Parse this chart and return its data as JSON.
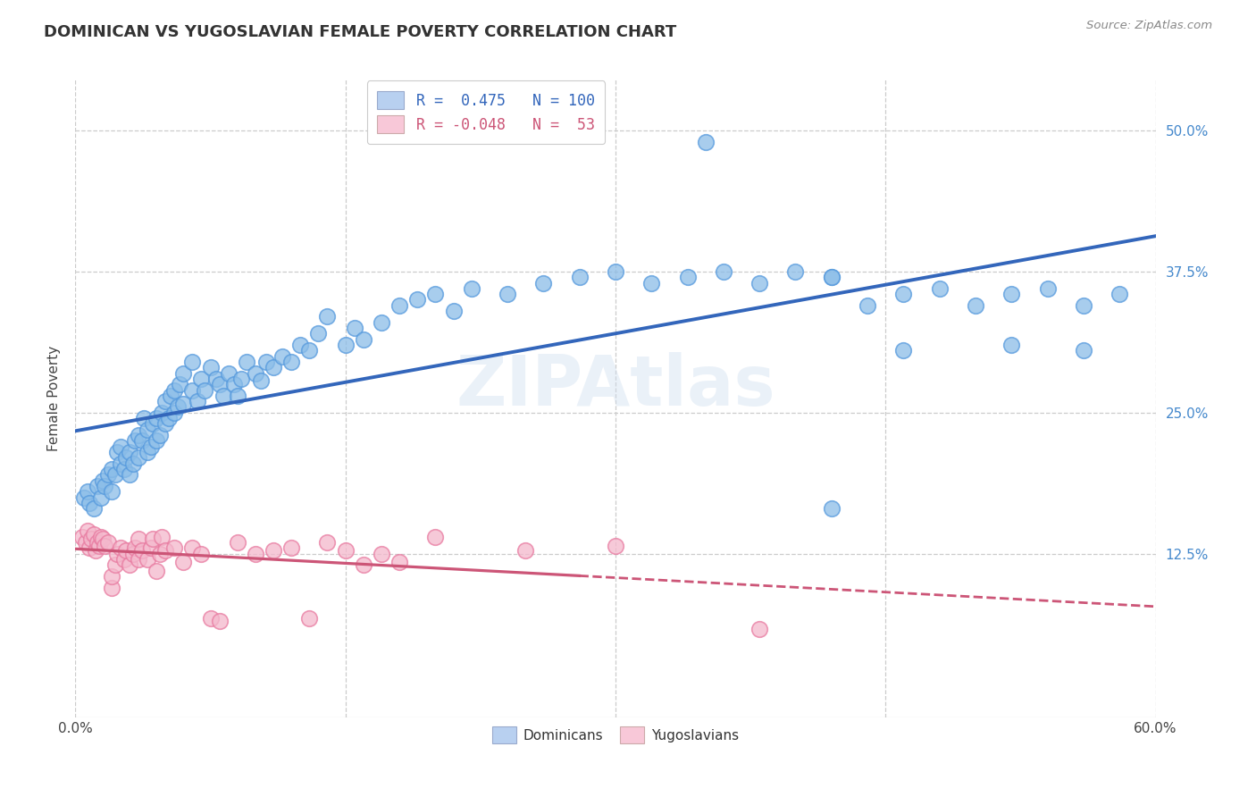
{
  "title": "DOMINICAN VS YUGOSLAVIAN FEMALE POVERTY CORRELATION CHART",
  "source": "Source: ZipAtlas.com",
  "ylabel": "Female Poverty",
  "yticks": [
    "12.5%",
    "25.0%",
    "37.5%",
    "50.0%"
  ],
  "ytick_vals": [
    0.125,
    0.25,
    0.375,
    0.5
  ],
  "xlim": [
    0.0,
    0.6
  ],
  "ylim": [
    -0.02,
    0.545
  ],
  "dominican_color": "#8bbde8",
  "dominican_edge": "#5599dd",
  "yugoslavian_color": "#f4b8cc",
  "yugoslavian_edge": "#e87aa0",
  "dominican_line_color": "#3366bb",
  "yugoslavian_line_color": "#cc5577",
  "legend_blue_label": "R =  0.475   N = 100",
  "legend_pink_label": "R = -0.048   N =  53",
  "legend_blue_face": "#b8d0f0",
  "legend_pink_face": "#f8c8d8",
  "watermark": "ZIPAtlas",
  "background_color": "#ffffff",
  "grid_color": "#cccccc",
  "dom_x": [
    0.005,
    0.007,
    0.008,
    0.01,
    0.012,
    0.014,
    0.015,
    0.016,
    0.018,
    0.02,
    0.02,
    0.022,
    0.023,
    0.025,
    0.025,
    0.027,
    0.028,
    0.03,
    0.03,
    0.032,
    0.033,
    0.035,
    0.035,
    0.037,
    0.038,
    0.04,
    0.04,
    0.042,
    0.043,
    0.045,
    0.045,
    0.047,
    0.048,
    0.05,
    0.05,
    0.052,
    0.053,
    0.055,
    0.055,
    0.057,
    0.058,
    0.06,
    0.06,
    0.065,
    0.065,
    0.068,
    0.07,
    0.072,
    0.075,
    0.078,
    0.08,
    0.082,
    0.085,
    0.088,
    0.09,
    0.092,
    0.095,
    0.1,
    0.103,
    0.106,
    0.11,
    0.115,
    0.12,
    0.125,
    0.13,
    0.135,
    0.14,
    0.15,
    0.155,
    0.16,
    0.17,
    0.18,
    0.19,
    0.2,
    0.21,
    0.22,
    0.24,
    0.26,
    0.28,
    0.3,
    0.32,
    0.34,
    0.36,
    0.38,
    0.4,
    0.42,
    0.44,
    0.46,
    0.48,
    0.5,
    0.52,
    0.54,
    0.56,
    0.58,
    0.35,
    0.42,
    0.46,
    0.52,
    0.56,
    0.42
  ],
  "dom_y": [
    0.175,
    0.18,
    0.17,
    0.165,
    0.185,
    0.175,
    0.19,
    0.185,
    0.195,
    0.18,
    0.2,
    0.195,
    0.215,
    0.205,
    0.22,
    0.2,
    0.21,
    0.195,
    0.215,
    0.205,
    0.225,
    0.21,
    0.23,
    0.225,
    0.245,
    0.215,
    0.235,
    0.22,
    0.24,
    0.225,
    0.245,
    0.23,
    0.25,
    0.24,
    0.26,
    0.245,
    0.265,
    0.25,
    0.27,
    0.255,
    0.275,
    0.258,
    0.285,
    0.27,
    0.295,
    0.26,
    0.28,
    0.27,
    0.29,
    0.28,
    0.275,
    0.265,
    0.285,
    0.275,
    0.265,
    0.28,
    0.295,
    0.285,
    0.278,
    0.295,
    0.29,
    0.3,
    0.295,
    0.31,
    0.305,
    0.32,
    0.335,
    0.31,
    0.325,
    0.315,
    0.33,
    0.345,
    0.35,
    0.355,
    0.34,
    0.36,
    0.355,
    0.365,
    0.37,
    0.375,
    0.365,
    0.37,
    0.375,
    0.365,
    0.375,
    0.37,
    0.345,
    0.355,
    0.36,
    0.345,
    0.355,
    0.36,
    0.345,
    0.355,
    0.49,
    0.37,
    0.305,
    0.31,
    0.305,
    0.165
  ],
  "yug_x": [
    0.004,
    0.006,
    0.007,
    0.008,
    0.009,
    0.01,
    0.011,
    0.012,
    0.013,
    0.014,
    0.015,
    0.016,
    0.018,
    0.02,
    0.02,
    0.022,
    0.023,
    0.025,
    0.027,
    0.028,
    0.03,
    0.032,
    0.033,
    0.035,
    0.035,
    0.037,
    0.04,
    0.042,
    0.043,
    0.045,
    0.047,
    0.048,
    0.05,
    0.055,
    0.06,
    0.065,
    0.07,
    0.075,
    0.08,
    0.09,
    0.1,
    0.11,
    0.12,
    0.13,
    0.14,
    0.15,
    0.16,
    0.17,
    0.18,
    0.2,
    0.25,
    0.3,
    0.38
  ],
  "yug_y": [
    0.14,
    0.135,
    0.145,
    0.13,
    0.138,
    0.142,
    0.128,
    0.135,
    0.132,
    0.14,
    0.138,
    0.132,
    0.135,
    0.095,
    0.105,
    0.115,
    0.125,
    0.13,
    0.12,
    0.128,
    0.115,
    0.125,
    0.13,
    0.12,
    0.138,
    0.128,
    0.12,
    0.13,
    0.138,
    0.11,
    0.125,
    0.14,
    0.128,
    0.13,
    0.118,
    0.13,
    0.125,
    0.068,
    0.065,
    0.135,
    0.125,
    0.128,
    0.13,
    0.068,
    0.135,
    0.128,
    0.115,
    0.125,
    0.118,
    0.14,
    0.128,
    0.132,
    0.058
  ]
}
